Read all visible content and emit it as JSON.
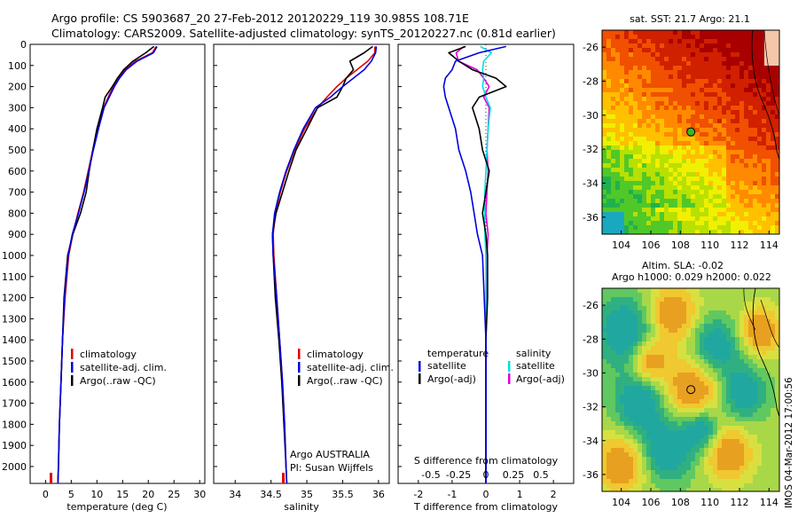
{
  "title_line1": "Argo profile: CS 5903687_20 27-Feb-2012 20120229_119 30.985S 108.71E",
  "title_line2": "Climatology: CARS2009. Satellite-adjusted climatology: synTS_20120227.nc (0.81d earlier)",
  "vertical_stamp": "IMOS 04-Mar-2012 17:00:56",
  "colors": {
    "climatology": "#e00000",
    "satellite": "#0000e0",
    "argo": "#000000",
    "sat_sal": "#00e0e0",
    "argo_sal": "#e000e0"
  },
  "chart_data": [
    {
      "id": "temperature",
      "type": "line",
      "xlabel": "temperature (deg C)",
      "xlim": [
        -3,
        31
      ],
      "ylim": [
        0,
        2080
      ],
      "xticks": [
        0,
        5,
        10,
        15,
        20,
        25,
        30
      ],
      "yticks": [
        0,
        100,
        200,
        300,
        400,
        500,
        600,
        700,
        800,
        900,
        1000,
        1100,
        1200,
        1300,
        1400,
        1500,
        1600,
        1700,
        1800,
        1900,
        2000
      ],
      "legend": [
        "climatology",
        "satellite-adj. clim.",
        "Argo(..raw -QC)"
      ],
      "depth": [
        10,
        40,
        80,
        120,
        160,
        200,
        250,
        300,
        400,
        500,
        600,
        700,
        800,
        900,
        1000,
        1200,
        1400,
        1600,
        1800,
        2000,
        2080
      ],
      "series": [
        {
          "name": "climatology",
          "values": [
            21.5,
            20.8,
            17.5,
            15.5,
            14.2,
            13.2,
            12.2,
            11.3,
            10.2,
            9.2,
            8.3,
            7.4,
            6.3,
            5.3,
            4.5,
            3.8,
            3.3,
            3.0,
            2.7,
            2.5,
            2.4
          ]
        },
        {
          "name": "satellite-adj. clim.",
          "values": [
            21.7,
            21.0,
            17.8,
            15.7,
            14.4,
            13.4,
            12.4,
            11.4,
            10.3,
            9.3,
            8.4,
            7.5,
            6.4,
            5.2,
            4.4,
            3.7,
            3.3,
            3.0,
            2.7,
            2.5,
            2.4
          ]
        },
        {
          "name": "Argo(..raw -QC)",
          "values": [
            21.1,
            19.5,
            17.0,
            15.2,
            14.0,
            13.0,
            11.6,
            11.1,
            10.0,
            9.2,
            8.5,
            7.9,
            6.8,
            5.3,
            4.3,
            3.6,
            3.3,
            3.0,
            2.7,
            2.5,
            2.4
          ]
        }
      ]
    },
    {
      "id": "salinity",
      "type": "line",
      "xlabel": "salinity",
      "xlim": [
        33.7,
        36.15
      ],
      "ylim": [
        0,
        2080
      ],
      "xticks": [
        34,
        34.5,
        35,
        35.5,
        36
      ],
      "legend": [
        "climatology",
        "satellite-adj. clim.",
        "Argo(..raw -QC)"
      ],
      "note_line1": "Argo AUSTRALIA",
      "note_line2": "PI: Susan Wijffels",
      "depth": [
        10,
        40,
        80,
        120,
        160,
        200,
        250,
        300,
        400,
        500,
        600,
        700,
        800,
        900,
        1000,
        1200,
        1400,
        1600,
        1800,
        2000,
        2080
      ],
      "series": [
        {
          "name": "climatology",
          "values": [
            35.95,
            35.95,
            35.85,
            35.7,
            35.55,
            35.42,
            35.28,
            35.15,
            34.97,
            34.83,
            34.72,
            34.63,
            34.56,
            34.53,
            34.54,
            34.58,
            34.62,
            34.66,
            34.69,
            34.71,
            34.72
          ]
        },
        {
          "name": "satellite-adj. clim.",
          "values": [
            35.97,
            35.96,
            35.9,
            35.8,
            35.65,
            35.5,
            35.33,
            35.12,
            34.95,
            34.82,
            34.71,
            34.62,
            34.55,
            34.52,
            34.53,
            34.58,
            34.62,
            34.66,
            34.69,
            34.71,
            34.72
          ]
        },
        {
          "name": "Argo(..raw -QC)",
          "values": [
            35.92,
            35.8,
            35.6,
            35.65,
            35.55,
            35.5,
            35.42,
            35.15,
            35.0,
            34.85,
            34.75,
            34.66,
            34.57,
            34.52,
            34.53,
            34.56,
            34.61,
            34.65,
            34.68,
            34.71,
            34.72
          ]
        }
      ]
    },
    {
      "id": "difference",
      "type": "line",
      "xlabel": "T difference from climatology",
      "xlabel_top": "S difference from climatology",
      "xlim": [
        -2.6,
        2.6
      ],
      "ylim": [
        0,
        2080
      ],
      "xticks": [
        "-2",
        "-1",
        "0",
        "1",
        "2"
      ],
      "xticks_top": [
        "-0.5",
        "-0.25",
        "0",
        "0.25",
        "0.5"
      ],
      "legend_temp_title": "temperature",
      "legend_sal_title": "salinity",
      "legend_temp": [
        "satellite",
        "Argo(-adj)"
      ],
      "legend_sal": [
        "satellite",
        "Argo(-adj)"
      ],
      "depth": [
        10,
        40,
        80,
        120,
        160,
        200,
        250,
        300,
        400,
        500,
        600,
        700,
        800,
        900,
        1000,
        1200,
        1400,
        1600,
        1800,
        2000,
        2080
      ],
      "series": [
        {
          "name": "T satellite",
          "values": [
            0.6,
            -0.2,
            -0.9,
            -1.0,
            -1.2,
            -1.25,
            -1.2,
            -1.1,
            -0.9,
            -0.8,
            -0.6,
            -0.45,
            -0.35,
            -0.25,
            -0.1,
            -0.05,
            0,
            0,
            0,
            0,
            0
          ]
        },
        {
          "name": "T Argo(-adj)",
          "values": [
            -0.6,
            -1.1,
            -0.8,
            -0.4,
            0.3,
            0.6,
            -0.2,
            -0.4,
            -0.2,
            -0.1,
            0.1,
            0,
            -0.1,
            0,
            0.05,
            0.05,
            0,
            0,
            0,
            0,
            0
          ]
        },
        {
          "name": "S satellite",
          "values": [
            -0.05,
            0.05,
            -0.02,
            -0.03,
            -0.02,
            -0.03,
            0,
            0.04,
            0.02,
            0.01,
            0,
            -0.01,
            -0.01,
            -0.01,
            0,
            0,
            0,
            0,
            0,
            0,
            0
          ]
        },
        {
          "name": "S Argo(-adj)",
          "values": [
            -0.2,
            -0.27,
            -0.25,
            -0.08,
            -0.02,
            0.03,
            -0.02,
            0.03,
            0.02,
            0.01,
            0.02,
            0.01,
            0,
            0.02,
            0.01,
            0.01,
            0,
            0,
            0,
            0,
            0
          ]
        }
      ]
    },
    {
      "id": "sst_map",
      "type": "heatmap",
      "title": "sat. SST: 21.7  Argo: 21.1",
      "xticks": [
        "104",
        "106",
        "108",
        "110",
        "112",
        "114"
      ],
      "yticks": [
        "-26",
        "-28",
        "-30",
        "-32",
        "-34",
        "-36"
      ],
      "xlim": [
        102.7,
        114.7
      ],
      "ylim": [
        -37,
        -25
      ],
      "argo_position": [
        108.71,
        -30.985
      ]
    },
    {
      "id": "sla_map",
      "type": "heatmap",
      "title_line1": "Altim. SLA: -0.02",
      "title_line2": "Argo h1000: 0.029 h2000: 0.022",
      "xticks": [
        "104",
        "106",
        "108",
        "110",
        "112",
        "114"
      ],
      "yticks": [
        "-26",
        "-28",
        "-30",
        "-32",
        "-34",
        "-36"
      ],
      "xlim": [
        102.7,
        114.7
      ],
      "ylim": [
        -37,
        -25
      ],
      "argo_position": [
        108.71,
        -30.985
      ]
    }
  ]
}
